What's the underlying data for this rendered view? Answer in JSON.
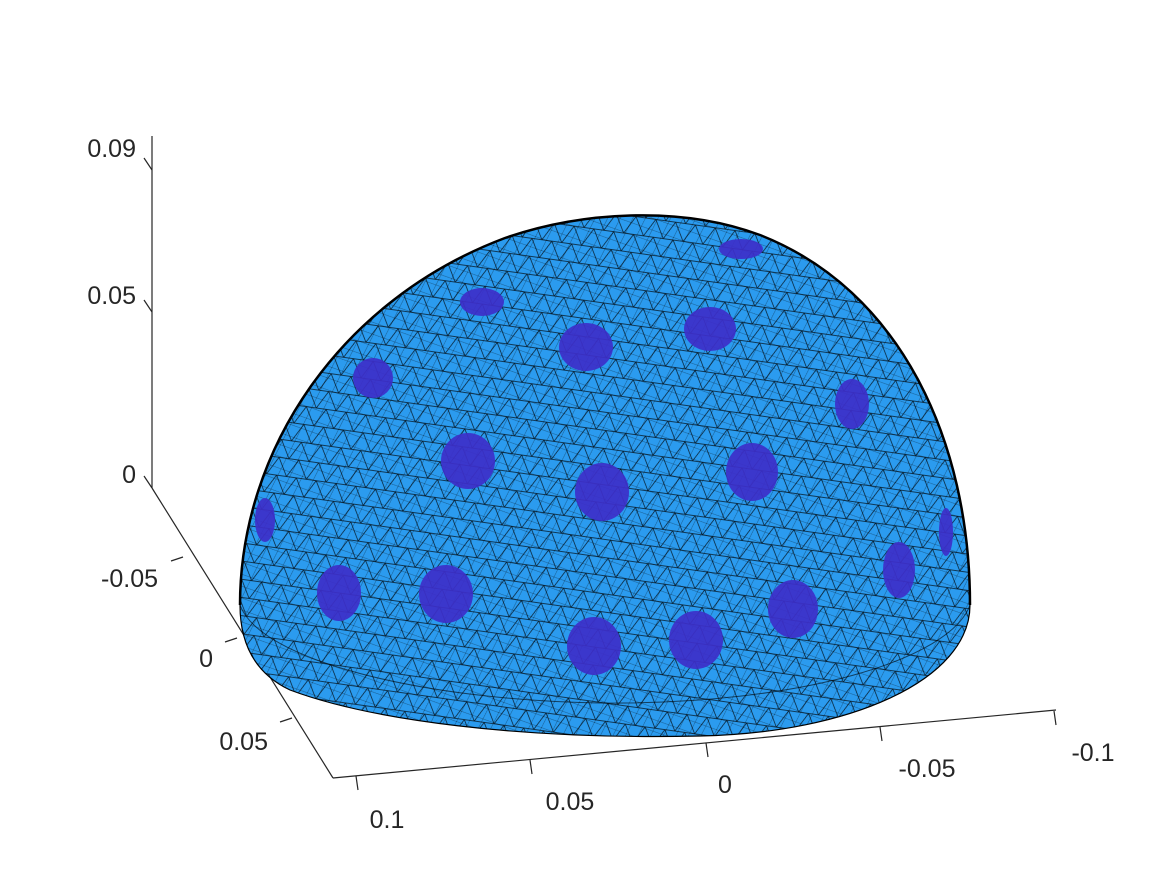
{
  "chart_data": {
    "type": "surface",
    "title": "",
    "xlabel": "",
    "ylabel": "",
    "zlabel": "",
    "grid": false,
    "surface_color": "#2b9bef",
    "electrode_color": "#3d2fc9",
    "mesh_color": "#000000",
    "x_ticks": [
      "0.1",
      "0.05",
      "0",
      "-0.05",
      "-0.1"
    ],
    "y_ticks": [
      "-0.05",
      "0",
      "0.05"
    ],
    "z_ticks": [
      "0",
      "0.05",
      "0.09"
    ],
    "xlim": [
      -0.1,
      0.1
    ],
    "ylim": [
      -0.1,
      0.1
    ],
    "zlim": [
      0,
      0.09
    ],
    "electrode_count": 22
  }
}
